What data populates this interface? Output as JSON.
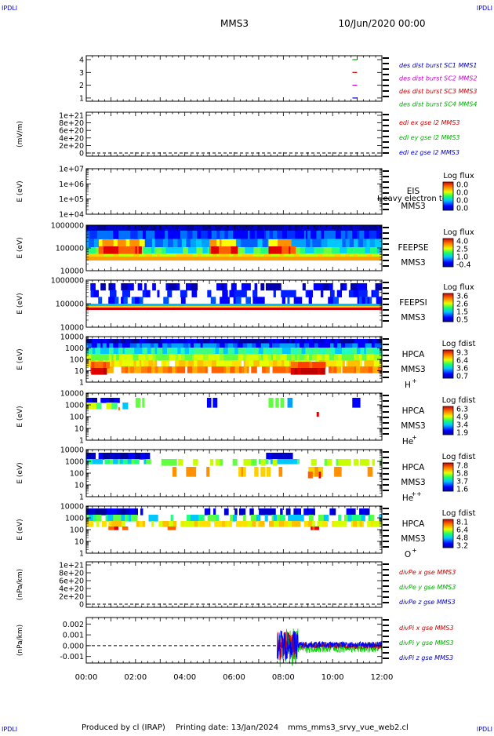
{
  "header": {
    "corner_label": "IPDLI",
    "mission": "MMS3",
    "date": "10/Jun/2020 00:00"
  },
  "footer": {
    "produced_by": "Produced by cl (IRAP)",
    "printing_date": "Printing date: 13/Jan/2024",
    "script": "mms_mms3_srvy_vue_web2.cl"
  },
  "chart_data": {
    "type": "heatmap",
    "x_tick_labels": [
      "00:00",
      "02:00",
      "04:00",
      "06:00",
      "08:00",
      "10:00",
      "12:00"
    ],
    "xlim_hours": [
      0,
      12
    ],
    "panels": [
      {
        "id": "burst",
        "yticks": [
          "4",
          "3",
          "2",
          "1"
        ],
        "legend": [
          {
            "text": "des dist burst SC1 MMS1",
            "color": "#0000cc"
          },
          {
            "text": "des dist burst SC2 MMS2",
            "color": "#cc00cc"
          },
          {
            "text": "des dist burst SC3 MMS3",
            "color": "#cc0000"
          },
          {
            "text": "des dist burst SC4 MMS4",
            "color": "#00b000"
          }
        ],
        "burst_marks": [
          {
            "level": 4,
            "x_hours": 10.9,
            "color": "#00aa00"
          },
          {
            "level": 3,
            "x_hours": 10.9,
            "color": "#cc0000"
          },
          {
            "level": 2,
            "x_hours": 10.9,
            "color": "#cc00cc"
          },
          {
            "level": 1,
            "x_hours": 10.9,
            "color": "#0000cc"
          }
        ]
      },
      {
        "id": "edi",
        "ylabel": "(mV/m)",
        "yticks": [
          "1e+21",
          "8e+20",
          "6e+20",
          "4e+20",
          "2e+20",
          "0"
        ],
        "legend": [
          {
            "text": "edi ex gse l2 MMS3",
            "color": "#cc0000"
          },
          {
            "text": "edi ey gse l2 MMS3",
            "color": "#00b000"
          },
          {
            "text": "edi ez gse l2 MMS3",
            "color": "#0000cc"
          }
        ]
      },
      {
        "id": "eis",
        "ylabel": "E (eV)",
        "yticks": [
          "1e+07",
          "1e+06",
          "1e+05",
          "1e+04"
        ],
        "instrument": "EIS",
        "overlay_text": "Heavy electron to",
        "spacecraft": "MMS3",
        "cbar_title": "Log flux",
        "cbar_ticks": [
          "0.0",
          "0.0",
          "0.0",
          "0.0"
        ]
      },
      {
        "id": "feepse",
        "ylabel": "E (eV)",
        "yticks": [
          "1000000",
          "100000",
          "10000"
        ],
        "instrument": "FEEPSE",
        "spacecraft": "MMS3",
        "cbar_title": "Log flux",
        "cbar_ticks": [
          "4.0",
          "2.5",
          "1.0",
          "-0.4"
        ]
      },
      {
        "id": "feepsi",
        "ylabel": "E (eV)",
        "yticks": [
          "1000000",
          "100000",
          "10000"
        ],
        "instrument": "FEEPSI",
        "spacecraft": "MMS3",
        "cbar_title": "Log flux",
        "cbar_ticks": [
          "3.6",
          "2.6",
          "1.5",
          "0.5"
        ]
      },
      {
        "id": "hpca_h",
        "ylabel": "E (eV)",
        "yticks": [
          "10000",
          "1000",
          "100",
          "10",
          "1"
        ],
        "instrument": "HPCA",
        "spacecraft": "MMS3",
        "species": "H",
        "charge": "+",
        "cbar_title": "Log fdist",
        "cbar_ticks": [
          "9.3",
          "6.4",
          "3.6",
          "0.7"
        ]
      },
      {
        "id": "hpca_he",
        "ylabel": "E (eV)",
        "yticks": [
          "10000",
          "1000",
          "100",
          "10",
          "1"
        ],
        "instrument": "HPCA",
        "spacecraft": "MMS3",
        "species": "He",
        "charge": "+",
        "cbar_title": "Log fdist",
        "cbar_ticks": [
          "6.3",
          "4.9",
          "3.4",
          "1.9"
        ]
      },
      {
        "id": "hpca_hepp",
        "ylabel": "E (eV)",
        "yticks": [
          "10000",
          "1000",
          "100",
          "10",
          "1"
        ],
        "instrument": "HPCA",
        "spacecraft": "MMS3",
        "species": "He",
        "charge": "++",
        "cbar_title": "Log fdist",
        "cbar_ticks": [
          "7.8",
          "5.8",
          "3.7",
          "1.6"
        ]
      },
      {
        "id": "hpca_o",
        "ylabel": "E (eV)",
        "yticks": [
          "10000",
          "1000",
          "100",
          "10",
          "1"
        ],
        "instrument": "HPCA",
        "spacecraft": "MMS3",
        "species": "O",
        "charge": "+",
        "cbar_title": "Log fdist",
        "cbar_ticks": [
          "8.1",
          "6.4",
          "4.8",
          "3.2"
        ]
      },
      {
        "id": "divpe",
        "ylabel": "(nPa/km)",
        "yticks": [
          "1e+21",
          "8e+20",
          "6e+20",
          "4e+20",
          "2e+20",
          "0"
        ],
        "legend": [
          {
            "text": "divPe x gse MMS3",
            "color": "#cc0000"
          },
          {
            "text": "divPe y gse MMS3",
            "color": "#00b000"
          },
          {
            "text": "divPe z gse MMS3",
            "color": "#0000cc"
          }
        ]
      },
      {
        "id": "divpi",
        "ylabel": "(nPa/km)",
        "yticks": [
          "0.002",
          "0.001",
          "0.000",
          "-0.001"
        ],
        "ylim": [
          -0.0016,
          0.0026
        ],
        "legend": [
          {
            "text": "divPi x gse MMS3",
            "color": "#cc0000"
          },
          {
            "text": "divPi y gse MMS3",
            "color": "#00b000"
          },
          {
            "text": "divPi z gse MMS3",
            "color": "#0000cc"
          }
        ]
      }
    ]
  }
}
